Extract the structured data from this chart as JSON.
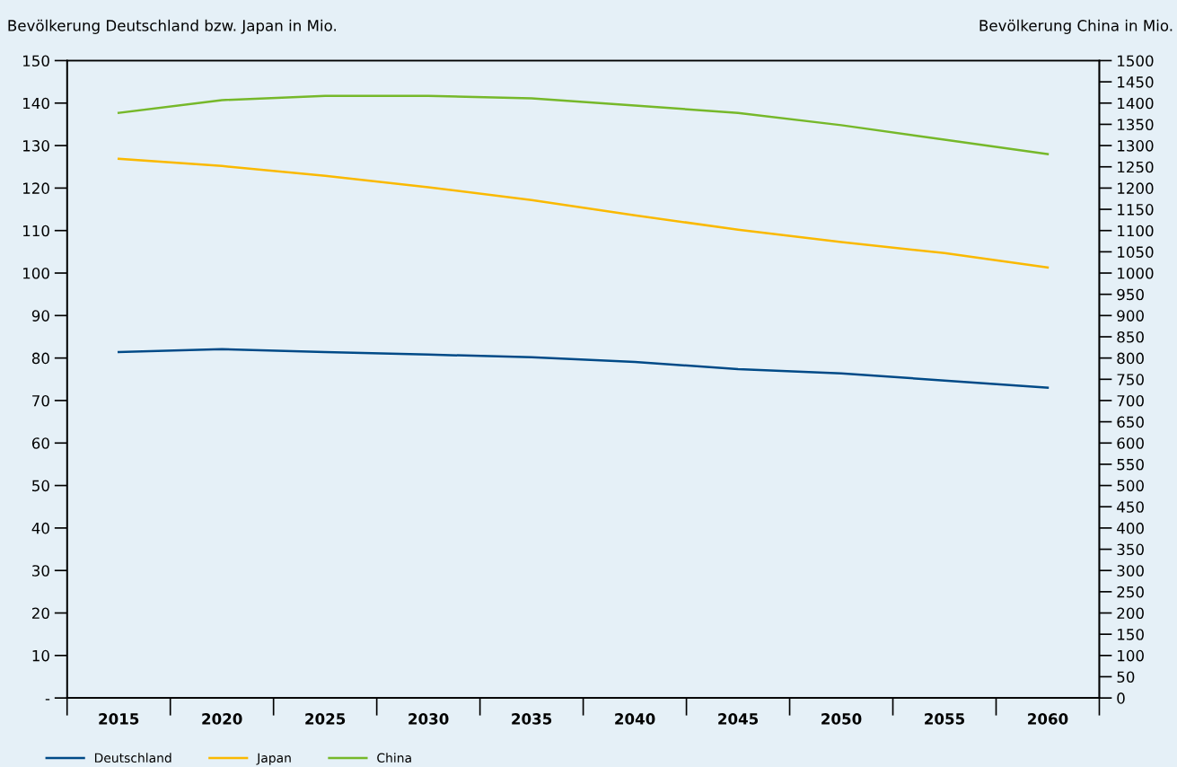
{
  "chart_data": {
    "type": "line",
    "ylabel": "Bevölkerung Deutschland bzw. Japan in Mio.",
    "y2label": "Bevölkerung China in Mio.",
    "categories": [
      "2015",
      "2020",
      "2025",
      "2030",
      "2035",
      "2040",
      "2045",
      "2050",
      "2055",
      "2060"
    ],
    "series": [
      {
        "name": "Deutschland",
        "color": "#004a87",
        "values": [
          81.4,
          82.1,
          81.4,
          80.8,
          80.2,
          79.1,
          77.4,
          76.4,
          74.7,
          73.0
        ]
      },
      {
        "name": "Japan",
        "color": "#fab900",
        "values": [
          126.9,
          125.2,
          122.9,
          120.2,
          117.2,
          113.6,
          110.2,
          107.3,
          104.7,
          101.3
        ]
      },
      {
        "name": "China",
        "color": "#76b82a",
        "axis": "y2",
        "values": [
          1377,
          1407,
          1417,
          1417,
          1411,
          1394,
          1377,
          1348,
          1314,
          1280
        ]
      }
    ],
    "ylim": [
      0,
      150
    ],
    "yticks": [
      {
        "value": 0,
        "label": "-"
      },
      10,
      20,
      30,
      40,
      50,
      60,
      70,
      80,
      90,
      100,
      110,
      120,
      130,
      140,
      150
    ],
    "y2lim": [
      0,
      1500
    ],
    "y2ticks": [
      0,
      50,
      100,
      150,
      200,
      250,
      300,
      350,
      400,
      450,
      500,
      550,
      600,
      650,
      700,
      750,
      800,
      850,
      900,
      950,
      1000,
      1050,
      1100,
      1150,
      1200,
      1250,
      1300,
      1350,
      1400,
      1450,
      1500
    ],
    "grid": false,
    "legend": "bottom left",
    "marker": "none",
    "line_style": "solid"
  }
}
